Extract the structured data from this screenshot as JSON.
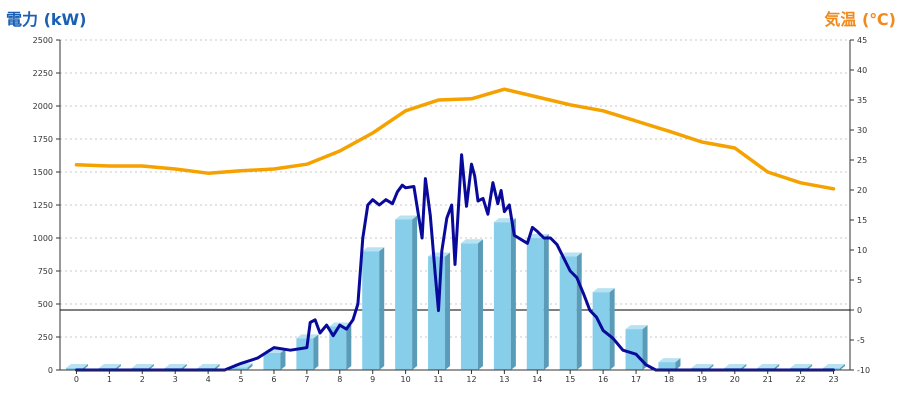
{
  "left_axis_title": "電力 (kW)",
  "right_axis_title": "気温 (℃)",
  "colors": {
    "bar_front": "#87ceeb",
    "bar_side": "#5a9bb8",
    "bar_top": "#b8e2f2",
    "power_line": "#0a0a9a",
    "temp_line": "#f5a100",
    "left_title": "#1a5fb4",
    "right_title": "#f08a1c",
    "grid": "#c8c8c8"
  },
  "chart_data": {
    "type": "bar",
    "categories": [
      "0",
      "1",
      "2",
      "3",
      "4",
      "5",
      "6",
      "7",
      "8",
      "9",
      "10",
      "11",
      "12",
      "13",
      "14",
      "15",
      "16",
      "17",
      "18",
      "19",
      "20",
      "21",
      "22",
      "23"
    ],
    "y_left_range": [
      0,
      2500
    ],
    "y_left_ticks": [
      "0",
      "250",
      "500",
      "750",
      "1000",
      "1250",
      "1500",
      "1750",
      "2000",
      "2250",
      "2500"
    ],
    "y_right_range": [
      -10,
      45
    ],
    "y_right_ticks": [
      "-10",
      "-5",
      "0",
      "5",
      "10",
      "15",
      "20",
      "25",
      "30",
      "35",
      "40",
      "45"
    ],
    "grid": true,
    "series": [
      {
        "kind": "bar",
        "axis": "left",
        "values": [
          0,
          0,
          0,
          0,
          0,
          20,
          130,
          240,
          330,
          900,
          1140,
          860,
          960,
          1120,
          1000,
          860,
          590,
          310,
          60,
          0,
          0,
          0,
          0,
          0
        ]
      },
      {
        "kind": "line",
        "axis": "left",
        "x": [
          0,
          1,
          2,
          3,
          4,
          4.5,
          5,
          5.5,
          6,
          6.5,
          7,
          7.1,
          7.25,
          7.4,
          7.6,
          7.8,
          8,
          8.2,
          8.4,
          8.55,
          8.7,
          8.85,
          9,
          9.2,
          9.4,
          9.6,
          9.75,
          9.9,
          10,
          10.25,
          10.5,
          10.6,
          10.75,
          10.9,
          11,
          11.1,
          11.25,
          11.4,
          11.5,
          11.7,
          11.85,
          12,
          12.1,
          12.2,
          12.35,
          12.5,
          12.65,
          12.8,
          12.9,
          13,
          13.15,
          13.3,
          13.5,
          13.7,
          13.85,
          14,
          14.2,
          14.4,
          14.6,
          14.8,
          15,
          15.2,
          15.4,
          15.6,
          15.8,
          16,
          16.3,
          16.6,
          17,
          17.3,
          17.6,
          17.9,
          18.1,
          19,
          20,
          21,
          22,
          23
        ],
        "values": [
          0,
          0,
          0,
          0,
          0,
          0,
          50,
          90,
          170,
          150,
          170,
          360,
          380,
          280,
          340,
          260,
          340,
          310,
          380,
          500,
          1000,
          1250,
          1290,
          1250,
          1290,
          1260,
          1350,
          1400,
          1380,
          1390,
          1000,
          1450,
          1170,
          720,
          450,
          900,
          1150,
          1250,
          800,
          1630,
          1240,
          1560,
          1470,
          1280,
          1300,
          1180,
          1420,
          1260,
          1360,
          1200,
          1250,
          1020,
          990,
          960,
          1080,
          1050,
          1000,
          1000,
          950,
          850,
          750,
          700,
          580,
          450,
          400,
          300,
          240,
          150,
          120,
          40,
          0,
          0,
          0,
          0,
          0,
          0,
          0,
          0
        ]
      },
      {
        "kind": "line",
        "axis": "right",
        "x": [
          0,
          1,
          2,
          3,
          4,
          5,
          6,
          7,
          8,
          9,
          10,
          11,
          12,
          13,
          14,
          15,
          16,
          17,
          18,
          19,
          20,
          21,
          22,
          23
        ],
        "values": [
          24.2,
          24,
          24,
          23.5,
          22.8,
          23.2,
          23.5,
          24.3,
          26.5,
          29.5,
          33.2,
          35,
          35.2,
          36.8,
          35.5,
          34.2,
          33.2,
          31.5,
          29.8,
          28,
          27,
          23,
          21.2,
          20.2
        ]
      }
    ]
  }
}
